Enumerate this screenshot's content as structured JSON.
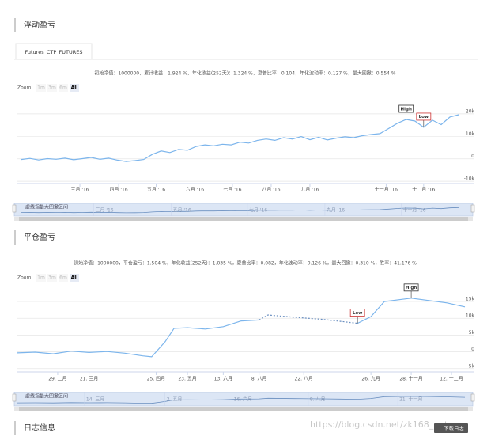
{
  "sections": [
    {
      "title": "浮动盈亏",
      "tab": "Futures_CTP_FUTURES",
      "stats": "初始净值：1000000，累计收益：1.924 %，年化收益(252天)：1.324 %，夏普比率：0.104，年化波动率：0.127 %，最大回撤：0.554 %",
      "zoom": {
        "label": "Zoom",
        "buttons": [
          "1m",
          "3m",
          "6m",
          "All"
        ],
        "active": "All"
      }
    },
    {
      "title": "平仓盈亏",
      "stats": "初始净值：1000000，平仓盈亏：1.504 %，年化收益(252天)：1.035 %，夏普比率：0.082，年化波动率：0.126 %，最大回撤：0.310 %，胜率：41.176 %",
      "zoom": {
        "label": "Zoom",
        "buttons": [
          "1m",
          "3m",
          "6m",
          "All"
        ],
        "active": "All"
      }
    }
  ],
  "chart_data": [
    {
      "type": "line",
      "color": "#7cb5ec",
      "grid": true,
      "x": [
        14,
        21,
        28,
        35,
        42,
        49,
        56,
        63,
        70,
        77,
        84,
        91,
        98,
        105,
        112,
        119,
        126,
        133,
        140,
        147,
        154,
        161,
        168,
        175,
        182,
        189,
        196,
        203,
        210,
        217,
        224,
        231,
        238,
        245,
        252,
        259,
        266,
        273,
        280,
        287,
        294,
        301,
        308,
        315,
        322,
        329,
        336,
        343,
        350,
        357,
        364
      ],
      "values": [
        -300,
        200,
        -500,
        100,
        -200,
        300,
        -400,
        100,
        600,
        -200,
        300,
        -600,
        -1200,
        -800,
        -300,
        2000,
        3500,
        2800,
        4200,
        3800,
        5500,
        6200,
        5800,
        6500,
        6200,
        7400,
        7000,
        8200,
        8800,
        8200,
        9400,
        8800,
        9900,
        8500,
        9600,
        8400,
        9200,
        9800,
        9400,
        10300,
        10800,
        11200,
        13500,
        15800,
        17500,
        16800,
        14000,
        17200,
        15200,
        18600,
        19600
      ],
      "xlim": [
        11,
        369
      ],
      "ylim": [
        -11000,
        27000
      ],
      "yticks": [
        {
          "value": 20000,
          "label": "20k"
        },
        {
          "value": 10000,
          "label": "10k"
        },
        0,
        {
          "value": -10000,
          "label": "-10k"
        }
      ],
      "xticks": [
        {
          "value": 61,
          "label": "三月 '16"
        },
        {
          "value": 92,
          "label": "四月 '16"
        },
        {
          "value": 122,
          "label": "五月 '16"
        },
        {
          "value": 153,
          "label": "六月 '16"
        },
        {
          "value": 183,
          "label": "七月 '16"
        },
        {
          "value": 214,
          "label": "八月 '16"
        },
        {
          "value": 245,
          "label": "九月 '16"
        },
        {
          "value": 306,
          "label": "十一月 '16"
        },
        {
          "value": 336,
          "label": "十二月 '16"
        }
      ],
      "flags": [
        {
          "label": "High",
          "x": 322,
          "y": 17500
        },
        {
          "label": "Low",
          "x": 336,
          "y": 14000
        }
      ],
      "navigator": {
        "label": "虚线指最大回撤区间",
        "ticks": [
          {
            "value": 72,
            "label": "三月 '16"
          },
          {
            "value": 134,
            "label": "五月 '16"
          },
          {
            "value": 195,
            "label": "七月 '16"
          },
          {
            "value": 257,
            "label": "九月 '16"
          },
          {
            "value": 318,
            "label": "十一月 '16"
          }
        ]
      }
    },
    {
      "type": "line",
      "color": "#7cb5ec",
      "grid": true,
      "x": [
        0,
        4,
        8,
        12,
        16,
        20,
        24,
        28,
        30,
        33,
        35,
        38,
        42,
        46,
        50,
        54,
        56,
        62,
        68,
        72,
        76,
        79,
        82,
        88,
        92,
        96,
        100
      ],
      "values": [
        -300,
        -100,
        -600,
        200,
        -200,
        100,
        -400,
        -1200,
        -1500,
        3000,
        7000,
        7200,
        6800,
        7500,
        9200,
        9500,
        11000,
        10300,
        9700,
        9100,
        8500,
        10500,
        15000,
        16000,
        15300,
        14600,
        13400
      ],
      "drawdown": {
        "start": 56,
        "end": 76
      },
      "xlim": [
        0,
        100
      ],
      "ylim": [
        -6000,
        19500
      ],
      "yticks": [
        {
          "value": 15000,
          "label": "15k"
        },
        {
          "value": 10000,
          "label": "10k"
        },
        {
          "value": 5000,
          "label": "5k"
        },
        0,
        {
          "value": -5000,
          "label": "-5k"
        }
      ],
      "xticks": [
        {
          "value": 9,
          "label": "29. 二月"
        },
        {
          "value": 16,
          "label": "21. 三月"
        },
        {
          "value": 31,
          "label": "25. 四月"
        },
        {
          "value": 38,
          "label": "23. 五月"
        },
        {
          "value": 46,
          "label": "13. 六月"
        },
        {
          "value": 54,
          "label": "8. 八月"
        },
        {
          "value": 64,
          "label": "22. 八月"
        },
        {
          "value": 79,
          "label": "26. 九月"
        },
        {
          "value": 88,
          "label": "28. 十一月"
        },
        {
          "value": 97,
          "label": "12. 十二月"
        }
      ],
      "flags": [
        {
          "label": "High",
          "x": 88,
          "y": 16000
        },
        {
          "label": "Low",
          "x": 76,
          "y": 8500
        }
      ],
      "navigator": {
        "label": "虚线指最大回撤区间",
        "ticks": [
          {
            "value": 15,
            "label": "14. 三月"
          },
          {
            "value": 33,
            "label": "2. 五月"
          },
          {
            "value": 48,
            "label": "16. 六月"
          },
          {
            "value": 65,
            "label": "8. 八月"
          },
          {
            "value": 85,
            "label": "21. 十一月"
          }
        ]
      }
    }
  ],
  "footer": {
    "title": "日志信息",
    "button": "下载日志",
    "watermark": "https://blog.csdn.net/zk168_net"
  }
}
